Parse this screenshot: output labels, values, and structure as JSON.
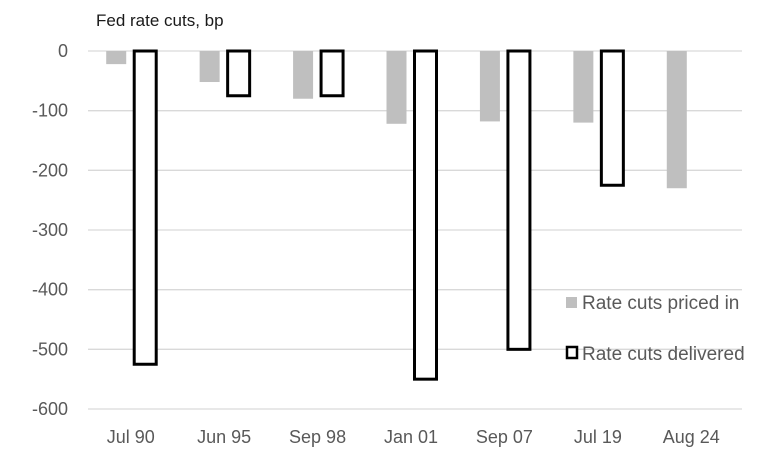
{
  "chart_data": {
    "type": "bar",
    "title": "Fed rate cuts, bp",
    "xlabel": "",
    "ylabel": "",
    "categories": [
      "Jul 90",
      "Jun 95",
      "Sep 98",
      "Jan 01",
      "Sep 07",
      "Jul 19",
      "Aug 24"
    ],
    "series": [
      {
        "name": "Rate cuts priced in",
        "values": [
          -22,
          -52,
          -80,
          -122,
          -118,
          -120,
          -230
        ],
        "color": "#bfbfbf"
      },
      {
        "name": "Rate cuts delivered",
        "values": [
          -525,
          -75,
          -75,
          -550,
          -500,
          -225,
          null
        ],
        "color": "#ffffff",
        "stroke": "#000000"
      }
    ],
    "ylim": [
      -600,
      0
    ],
    "yticks": [
      "0",
      "-100",
      "-200",
      "-300",
      "-400",
      "-500",
      "-600"
    ],
    "ytick_values": [
      0,
      -100,
      -200,
      -300,
      -400,
      -500,
      -600
    ],
    "grid": true,
    "legend_placement": "bottom-right",
    "gridline_color": "#d9d9d9"
  }
}
